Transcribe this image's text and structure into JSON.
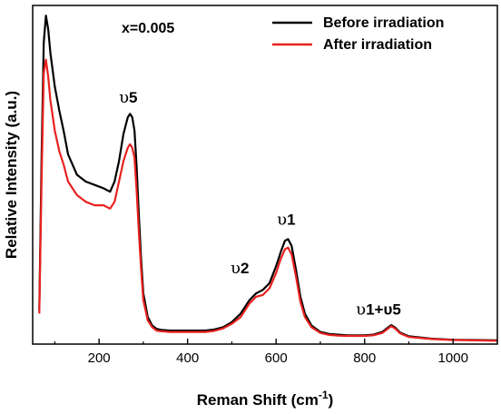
{
  "chart_data": {
    "type": "line",
    "title": "",
    "xlabel": "Reman Shift (cm",
    "xlabel_sup": "-1",
    "xlabel_tail": ")",
    "ylabel": "Relative Intensity (a.u.)",
    "xlim": [
      50,
      1100
    ],
    "ylim": [
      0,
      100
    ],
    "x_ticks": [
      200,
      400,
      600,
      800,
      1000
    ],
    "x_tick_labels": [
      "200",
      "400",
      "600",
      "800",
      "1000"
    ],
    "y_tick_labels_visible": false,
    "grid": false,
    "legend": "top-right",
    "annotation": "x=0.005",
    "peak_labels": [
      {
        "symbol": "υ",
        "text": "5",
        "x": 270,
        "y": 67
      },
      {
        "symbol": "υ",
        "text": "2",
        "x": 555,
        "y": 15
      },
      {
        "symbol": "υ",
        "text": "1",
        "x": 627,
        "y": 31
      },
      {
        "symbol": "υ",
        "text": "1+υ5",
        "x": 860,
        "y": 6
      }
    ],
    "series": [
      {
        "name": "Before irradiation",
        "color": "#000000",
        "x": [
          65,
          70,
          75,
          80,
          85,
          90,
          100,
          110,
          120,
          130,
          150,
          170,
          190,
          210,
          225,
          235,
          245,
          255,
          265,
          270,
          275,
          280,
          285,
          290,
          295,
          300,
          310,
          320,
          330,
          340,
          360,
          380,
          400,
          420,
          440,
          460,
          480,
          500,
          520,
          540,
          555,
          570,
          585,
          600,
          610,
          620,
          627,
          635,
          645,
          655,
          665,
          680,
          700,
          720,
          740,
          760,
          780,
          800,
          820,
          840,
          850,
          860,
          870,
          880,
          900,
          950,
          1000,
          1050,
          1100
        ],
        "y": [
          10,
          55,
          89,
          97,
          93,
          86,
          76,
          69,
          63,
          56,
          50,
          48,
          47,
          46,
          45,
          48,
          54,
          62,
          67,
          68,
          67,
          63,
          52,
          38,
          25,
          15,
          8,
          5.5,
          4.5,
          4.2,
          4.0,
          4.0,
          4.0,
          4.0,
          4.0,
          4.3,
          5.0,
          6.5,
          9,
          13,
          15,
          16,
          18,
          23,
          27,
          30.5,
          31,
          29,
          22,
          14,
          9,
          5.5,
          3.6,
          3.0,
          2.8,
          2.6,
          2.6,
          2.6,
          2.8,
          3.6,
          4.6,
          5.6,
          4.8,
          3.4,
          2.3,
          1.6,
          1.3,
          1.2,
          1.1
        ]
      },
      {
        "name": "After irradiation",
        "color": "#e8221f",
        "x": [
          65,
          70,
          75,
          80,
          85,
          90,
          100,
          110,
          120,
          130,
          150,
          170,
          190,
          210,
          225,
          235,
          245,
          255,
          265,
          270,
          275,
          280,
          285,
          290,
          295,
          300,
          310,
          320,
          330,
          340,
          360,
          380,
          400,
          420,
          440,
          460,
          480,
          500,
          520,
          540,
          555,
          570,
          585,
          600,
          610,
          620,
          627,
          635,
          645,
          655,
          665,
          680,
          700,
          720,
          740,
          760,
          780,
          800,
          820,
          840,
          850,
          860,
          870,
          880,
          900,
          950,
          1000,
          1050,
          1100
        ],
        "y": [
          9,
          48,
          80,
          84,
          79,
          72,
          63,
          57,
          53,
          48,
          44,
          42,
          41,
          41,
          40,
          42,
          48,
          54,
          58,
          59,
          58,
          55,
          45,
          33,
          22,
          13,
          7,
          5.0,
          4.0,
          3.8,
          3.6,
          3.6,
          3.6,
          3.6,
          3.6,
          3.9,
          4.6,
          6.0,
          8,
          12,
          14,
          14.5,
          16.5,
          21,
          25,
          28,
          28.5,
          26.5,
          20,
          12.5,
          8,
          5,
          3.3,
          2.7,
          2.5,
          2.4,
          2.4,
          2.4,
          2.6,
          3.3,
          4.3,
          5.3,
          4.5,
          3.2,
          2.1,
          1.5,
          1.2,
          1.1,
          1.0
        ]
      }
    ]
  }
}
